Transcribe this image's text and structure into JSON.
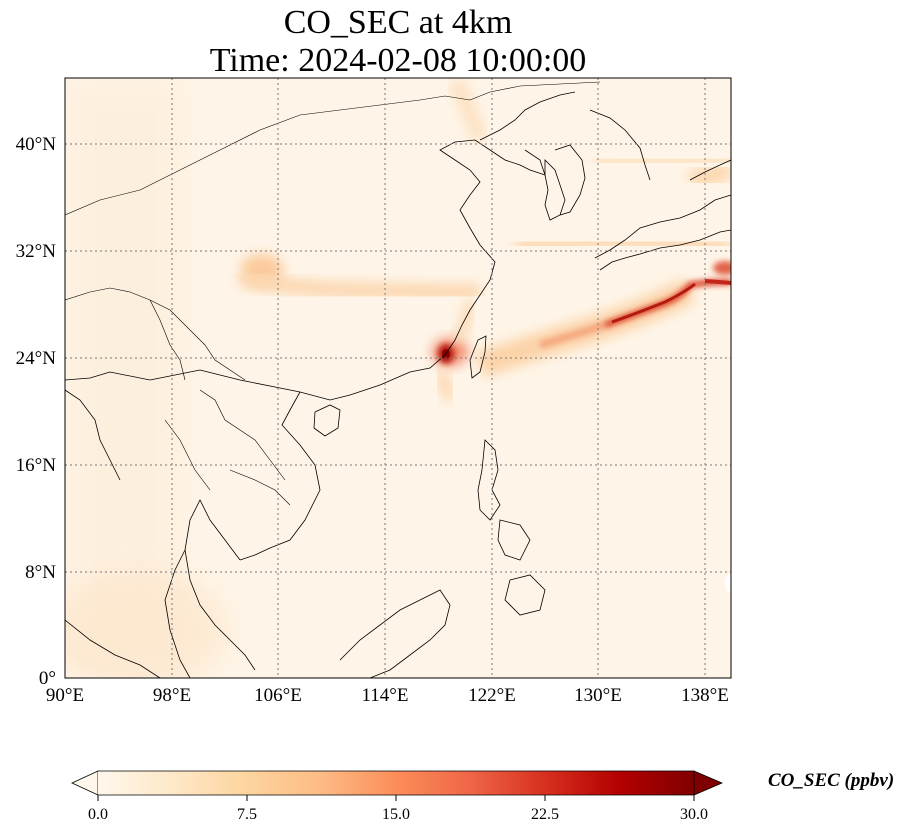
{
  "title": {
    "line1": "CO_SEC at 4km",
    "line2": "Time: 2024-02-08 10:00:00"
  },
  "map": {
    "lon_range": [
      90,
      139
    ],
    "lat_range": [
      0,
      44.5
    ],
    "gridlines": "dotted",
    "lon_ticks": [
      "90°E",
      "98°E",
      "106°E",
      "114°E",
      "122°E",
      "130°E",
      "138°E"
    ],
    "lat_ticks": [
      "0°",
      "8°N",
      "16°N",
      "24°N",
      "32°N",
      "40°N"
    ]
  },
  "colorbar": {
    "label": "CO_SEC (ppbv)",
    "min": 0.0,
    "max": 30.0,
    "ticks": [
      "0.0",
      "7.5",
      "15.0",
      "22.5",
      "30.0"
    ],
    "colormap": "OrRd",
    "colors": [
      "#fff7ec",
      "#fee8c8",
      "#fdd49e",
      "#fdbb84",
      "#fc8d59",
      "#ef6548",
      "#d7301f",
      "#b30000",
      "#7f0000"
    ]
  }
}
